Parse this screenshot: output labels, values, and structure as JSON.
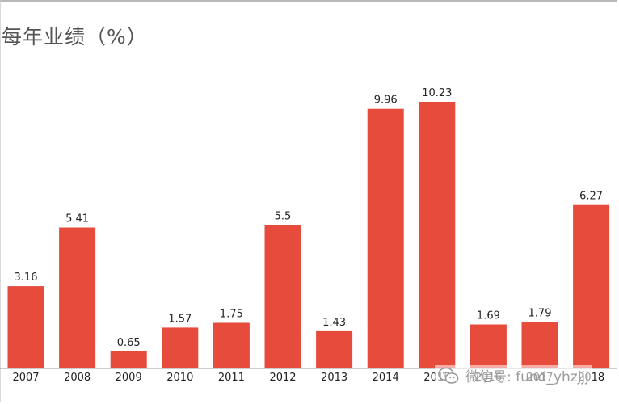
{
  "title": "每年业绩（%）",
  "watermark": {
    "icon": "wechat-icon",
    "text": "微信号: fund_yhzjjj"
  },
  "colors": {
    "bar": "#e64b3c",
    "axis": "#9a9a9a",
    "label": "#222222"
  },
  "chart_data": {
    "type": "bar",
    "title": "每年业绩（%）",
    "xlabel": "",
    "ylabel": "",
    "categories": [
      "2007",
      "2008",
      "2009",
      "2010",
      "2011",
      "2012",
      "2013",
      "2014",
      "2015",
      "2016",
      "2017",
      "2018"
    ],
    "values": [
      3.16,
      5.41,
      0.65,
      1.57,
      1.75,
      5.5,
      1.43,
      9.96,
      10.23,
      1.69,
      1.79,
      6.27
    ],
    "value_labels": [
      "3.16",
      "5.41",
      "0.65",
      "1.57",
      "1.75",
      "5.5",
      "1.43",
      "9.96",
      "10.23",
      "1.69",
      "1.79",
      "6.27"
    ],
    "ylim": [
      0,
      10.23
    ],
    "grid": false,
    "legend": "none"
  }
}
